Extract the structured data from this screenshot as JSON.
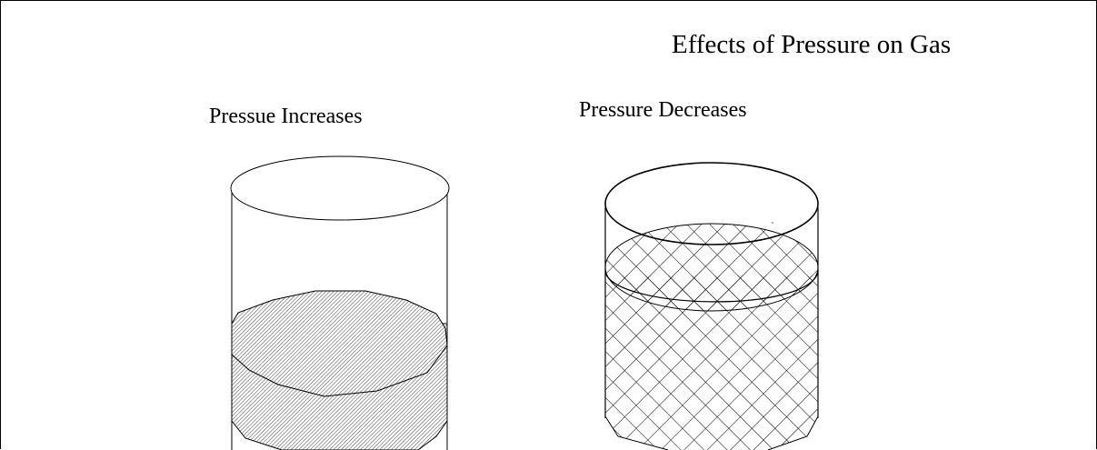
{
  "title": "Effects of Pressure on Gas",
  "containers": [
    {
      "label": "Pressue Increases",
      "fill": "diagonal-hatch",
      "level": 0.55
    },
    {
      "label": "Pressure Decreases",
      "fill": "cross-hatch",
      "level": 0.85
    }
  ],
  "colors": {
    "stroke": "#000000",
    "background": "#ffffff"
  }
}
